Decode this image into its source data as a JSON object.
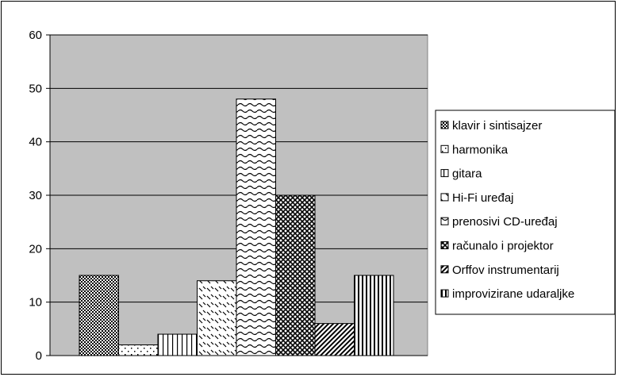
{
  "chart_data": {
    "type": "bar",
    "categories": [
      "klavir i sintisajzer",
      "harmonika",
      "gitara",
      "Hi-Fi uređaj",
      "prenosivi CD-uređaj",
      "računalo i projektor",
      "Orffov instrumentarij",
      "improvizirane udaraljke"
    ],
    "values": [
      15,
      2,
      4,
      14,
      48,
      30,
      6,
      15
    ],
    "ylim": [
      0,
      60
    ],
    "yticks": [
      "0",
      "10",
      "20",
      "30",
      "40",
      "50",
      "60"
    ],
    "grid": true,
    "legend_position": "right",
    "plot_background": "#c0c0c0",
    "bar_patterns": [
      "checker",
      "dots",
      "vlines",
      "diag-dash",
      "waves",
      "diamond-grid",
      "diag-thick",
      "vstripes"
    ]
  }
}
